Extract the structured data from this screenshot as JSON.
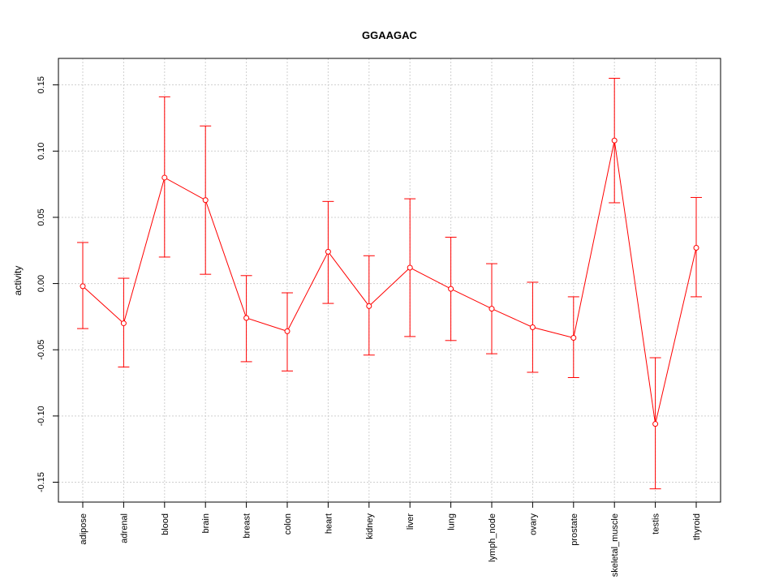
{
  "chart_data": {
    "type": "line",
    "title": "GGAAGAC",
    "xlabel": "",
    "ylabel": "activity",
    "ylim": [
      -0.165,
      0.17
    ],
    "yticks": [
      -0.15,
      -0.1,
      -0.05,
      0.0,
      0.05,
      0.1,
      0.15
    ],
    "ytick_labels": [
      "-0.15",
      "-0.10",
      "-0.05",
      "0.00",
      "0.05",
      "0.10",
      "0.15"
    ],
    "grid": true,
    "color": "#ff0000",
    "categories": [
      "adipose",
      "adrenal",
      "blood",
      "brain",
      "breast",
      "colon",
      "heart",
      "kidney",
      "liver",
      "lung",
      "lymph_node",
      "ovary",
      "prostate",
      "skeletal_muscle",
      "testis",
      "thyroid"
    ],
    "series": [
      {
        "values": [
          -0.002,
          -0.03,
          0.08,
          0.063,
          -0.026,
          -0.036,
          0.024,
          -0.017,
          0.012,
          -0.004,
          -0.019,
          -0.033,
          -0.041,
          0.108,
          -0.106,
          0.027
        ],
        "upper": [
          0.031,
          0.004,
          0.141,
          0.119,
          0.006,
          -0.007,
          0.062,
          0.021,
          0.064,
          0.035,
          0.015,
          0.001,
          -0.01,
          0.155,
          -0.056,
          0.065
        ],
        "lower": [
          -0.034,
          -0.063,
          0.02,
          0.007,
          -0.059,
          -0.066,
          -0.015,
          -0.054,
          -0.04,
          -0.043,
          -0.053,
          -0.067,
          -0.071,
          0.061,
          -0.155,
          -0.01
        ]
      }
    ]
  }
}
